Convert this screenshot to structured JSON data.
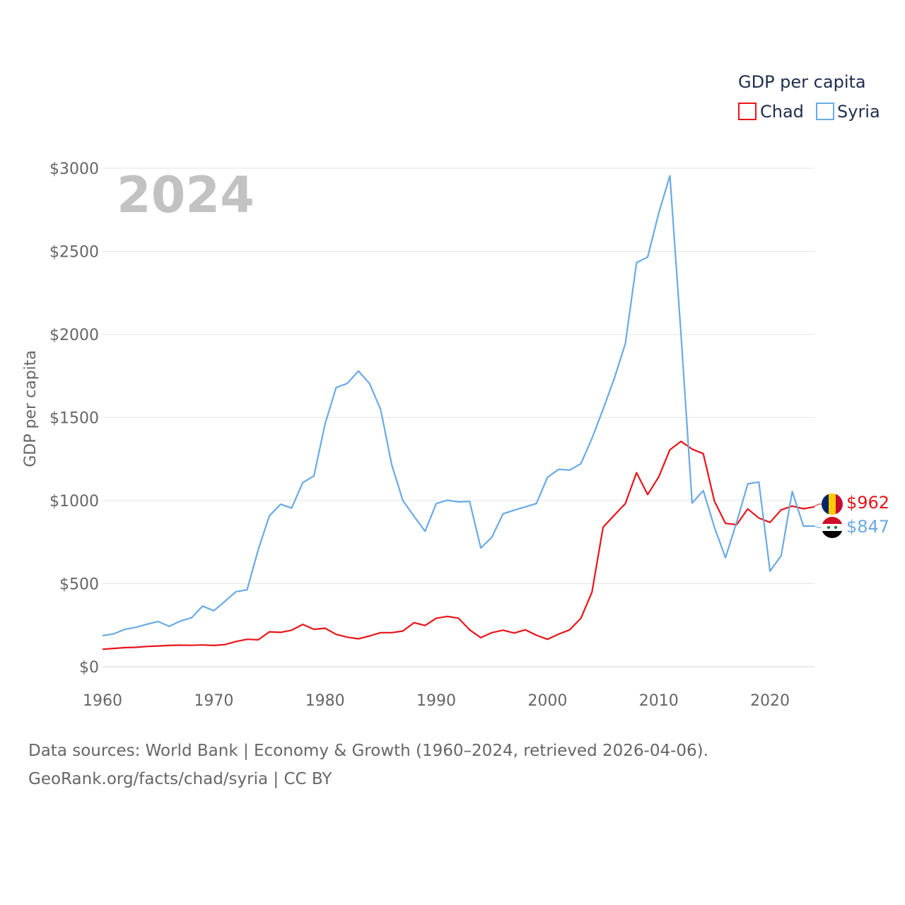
{
  "chart_data": {
    "type": "line",
    "year_label": "2024",
    "ylabel": "GDP per capita",
    "xlabel": "",
    "xlim": [
      1960,
      2024
    ],
    "ylim": [
      0,
      3000
    ],
    "x_ticks": [
      1960,
      1970,
      1980,
      1990,
      2000,
      2010,
      2020
    ],
    "y_ticks": [
      0,
      500,
      1000,
      1500,
      2000,
      2500,
      3000
    ],
    "y_tick_labels": [
      "$0",
      "$500",
      "$1000",
      "$1500",
      "$2000",
      "$2500",
      "$3000"
    ],
    "grid": true,
    "legend": {
      "title": "GDP per capita",
      "position": "top-right",
      "entries": [
        "Chad",
        "Syria"
      ]
    },
    "series": [
      {
        "name": "Chad",
        "color": "#e8141a",
        "end_label": "$962",
        "flag_icon": "chad-flag-icon",
        "x": [
          1960,
          1961,
          1962,
          1963,
          1964,
          1965,
          1966,
          1967,
          1968,
          1969,
          1970,
          1971,
          1972,
          1973,
          1974,
          1975,
          1976,
          1977,
          1978,
          1979,
          1980,
          1981,
          1982,
          1983,
          1984,
          1985,
          1986,
          1987,
          1988,
          1989,
          1990,
          1991,
          1992,
          1993,
          1994,
          1995,
          1996,
          1997,
          1998,
          1999,
          2000,
          2001,
          2002,
          2003,
          2004,
          2005,
          2006,
          2007,
          2008,
          2009,
          2010,
          2011,
          2012,
          2013,
          2014,
          2015,
          2016,
          2017,
          2018,
          2019,
          2020,
          2021,
          2022,
          2023,
          2024
        ],
        "values": [
          105,
          110,
          115,
          117,
          122,
          125,
          128,
          130,
          129,
          131,
          128,
          133,
          152,
          165,
          162,
          210,
          207,
          220,
          255,
          225,
          232,
          195,
          178,
          168,
          185,
          205,
          205,
          215,
          265,
          248,
          292,
          303,
          292,
          222,
          175,
          205,
          220,
          203,
          222,
          190,
          165,
          196,
          222,
          292,
          450,
          840,
          912,
          982,
          1168,
          1036,
          1142,
          1306,
          1356,
          1310,
          1282,
          997,
          863,
          855,
          950,
          895,
          869,
          944,
          967,
          951,
          962
        ]
      },
      {
        "name": "Syria",
        "color": "#6aaae4",
        "end_label": "$847",
        "flag_icon": "syria-flag-icon",
        "x": [
          1960,
          1961,
          1962,
          1963,
          1964,
          1965,
          1966,
          1967,
          1968,
          1969,
          1970,
          1971,
          1972,
          1973,
          1974,
          1975,
          1976,
          1977,
          1978,
          1979,
          1980,
          1981,
          1982,
          1983,
          1984,
          1985,
          1986,
          1987,
          1988,
          1989,
          1990,
          1991,
          1992,
          1993,
          1994,
          1995,
          1996,
          1997,
          1998,
          1999,
          2000,
          2001,
          2002,
          2003,
          2004,
          2005,
          2006,
          2007,
          2008,
          2009,
          2010,
          2011,
          2012,
          2013,
          2014,
          2015,
          2016,
          2017,
          2018,
          2019,
          2020,
          2021,
          2022,
          2023,
          2024
        ],
        "values": [
          187,
          198,
          225,
          237,
          256,
          272,
          243,
          275,
          295,
          365,
          337,
          393,
          452,
          463,
          705,
          908,
          978,
          955,
          1108,
          1148,
          1460,
          1680,
          1705,
          1780,
          1705,
          1548,
          1215,
          1000,
          905,
          815,
          982,
          1002,
          992,
          995,
          715,
          780,
          920,
          942,
          962,
          982,
          1140,
          1188,
          1184,
          1222,
          1375,
          1550,
          1735,
          1945,
          2432,
          2465,
          2730,
          2955,
          2000,
          985,
          1060,
          840,
          656,
          870,
          1100,
          1112,
          575,
          668,
          1055,
          847,
          847
        ]
      }
    ]
  },
  "footer": {
    "line1": "Data sources: World Bank | Economy & Growth (1960–2024, retrieved 2026-04-06).",
    "line2": "GeoRank.org/facts/chad/syria | CC BY"
  }
}
